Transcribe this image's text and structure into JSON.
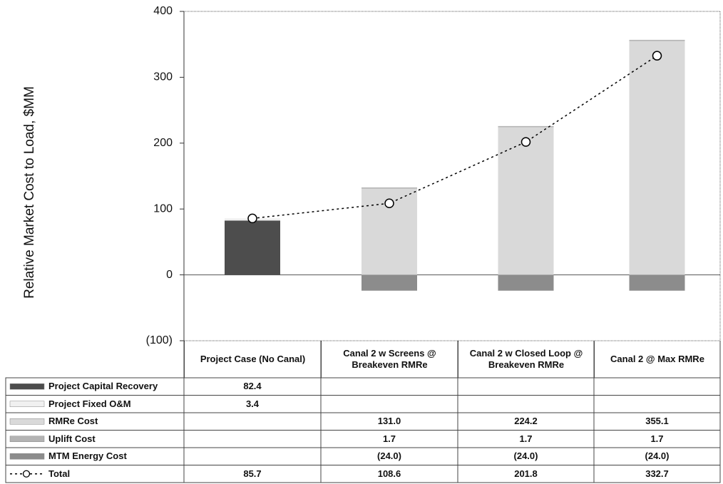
{
  "chart_data": {
    "type": "stacked-bar-line",
    "y_label": "Relative Market Cost to Load, $MM",
    "categories": [
      "Project Case (No Canal)",
      "Canal 2 w Screens @ Breakeven RMRe",
      "Canal 2 w Closed Loop @ Breakeven RMRe",
      "Canal 2 @ Max RMRe"
    ],
    "ylim": [
      -100,
      400
    ],
    "yticks": [
      {
        "value": -100,
        "label": "(100)"
      },
      0,
      100,
      200,
      300,
      400
    ],
    "grid": false,
    "series": [
      {
        "name": "Project Capital Recovery",
        "color": "#4d4d4d",
        "values": [
          82.4,
          null,
          null,
          null
        ],
        "value_labels": [
          "82.4",
          null,
          null,
          null
        ]
      },
      {
        "name": "Project Fixed O&M",
        "color": "#f0f0f0",
        "values": [
          3.4,
          null,
          null,
          null
        ],
        "value_labels": [
          "3.4",
          null,
          null,
          null
        ]
      },
      {
        "name": "RMRe Cost",
        "color": "#d9d9d9",
        "values": [
          null,
          131.0,
          224.2,
          355.1
        ],
        "value_labels": [
          null,
          "131.0",
          "224.2",
          "355.1"
        ]
      },
      {
        "name": "Uplift Cost",
        "color": "#b3b3b3",
        "values": [
          null,
          1.7,
          1.7,
          1.7
        ],
        "value_labels": [
          null,
          "1.7",
          "1.7",
          "1.7"
        ]
      },
      {
        "name": "MTM Energy Cost",
        "color": "#8c8c8c",
        "values": [
          null,
          -24.0,
          -24.0,
          -24.0
        ],
        "value_labels": [
          null,
          "(24.0)",
          "(24.0)",
          "(24.0)"
        ]
      },
      {
        "name": "Total",
        "color": "#000000",
        "kind": "line",
        "values": [
          85.7,
          108.6,
          201.8,
          332.7
        ],
        "value_labels": [
          "85.7",
          "108.6",
          "201.8",
          "332.7"
        ]
      }
    ]
  }
}
